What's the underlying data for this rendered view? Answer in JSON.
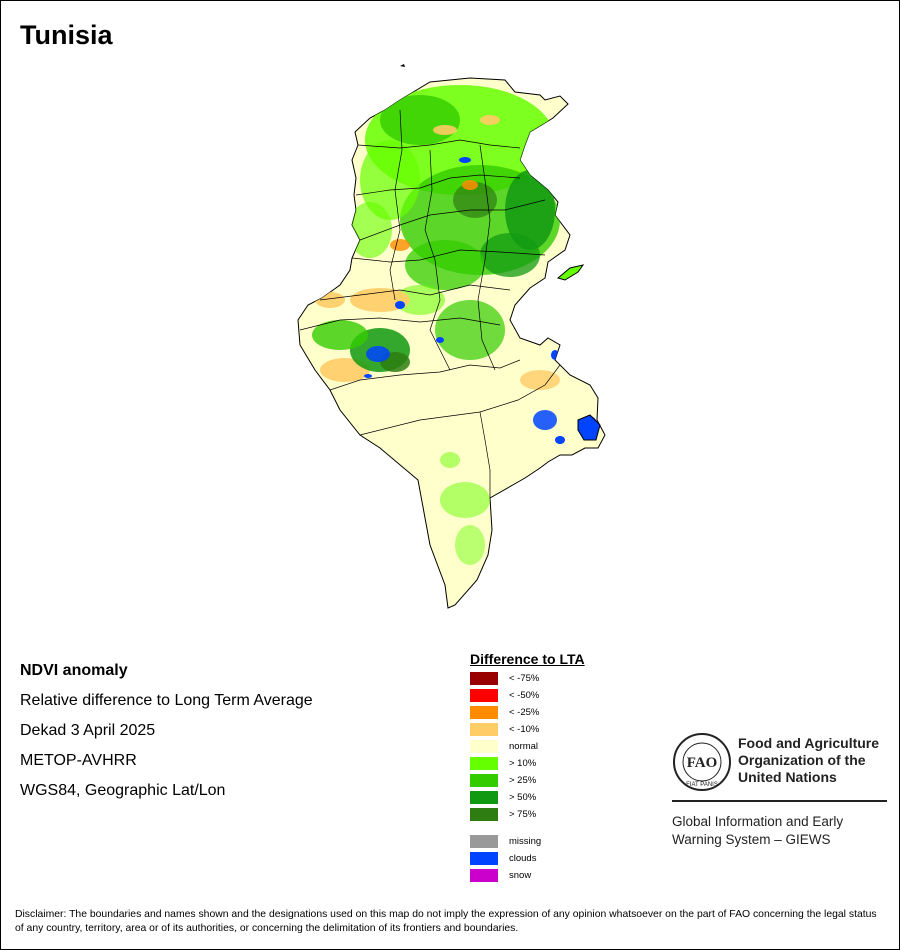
{
  "map": {
    "title": "Tunisia",
    "country": "Tunisia"
  },
  "info": {
    "heading": "NDVI anomaly",
    "line1": "Relative difference to Long Term Average",
    "line2": "Dekad 3 April 2025",
    "line3": "METOP-AVHRR",
    "line4": "WGS84, Geographic Lat/Lon"
  },
  "legend": {
    "title": "Difference to LTA",
    "items": [
      {
        "label": "< -75%",
        "color": "#990000"
      },
      {
        "label": "< -50%",
        "color": "#ff0000"
      },
      {
        "label": "< -25%",
        "color": "#ff8c00"
      },
      {
        "label": "< -10%",
        "color": "#ffcc66"
      },
      {
        "label": "normal",
        "color": "#ffffcc"
      },
      {
        "label": "> 10%",
        "color": "#66ff00"
      },
      {
        "label": "> 25%",
        "color": "#33cc00"
      },
      {
        "label": "> 50%",
        "color": "#119911"
      },
      {
        "label": "> 75%",
        "color": "#2e7d12"
      }
    ],
    "other": [
      {
        "label": "missing",
        "color": "#999999"
      },
      {
        "label": "clouds",
        "color": "#0044ff"
      },
      {
        "label": "snow",
        "color": "#cc00cc"
      }
    ]
  },
  "organization": {
    "logo_text": "FAO",
    "logo_motto": "FIAT PANIS",
    "name_line1": "Food and Agriculture",
    "name_line2": "Organization of the",
    "name_line3": "United Nations",
    "system_line1": "Global Information and Early",
    "system_line2": "Warning System – GIEWS"
  },
  "disclaimer": "Disclaimer: The boundaries and names shown and the designations used on this map do not imply the expression of any opinion whatsoever on the part of FAO concerning the legal status of any country, territory, area or of its authorities, or concerning the delimitation of its frontiers and boundaries."
}
